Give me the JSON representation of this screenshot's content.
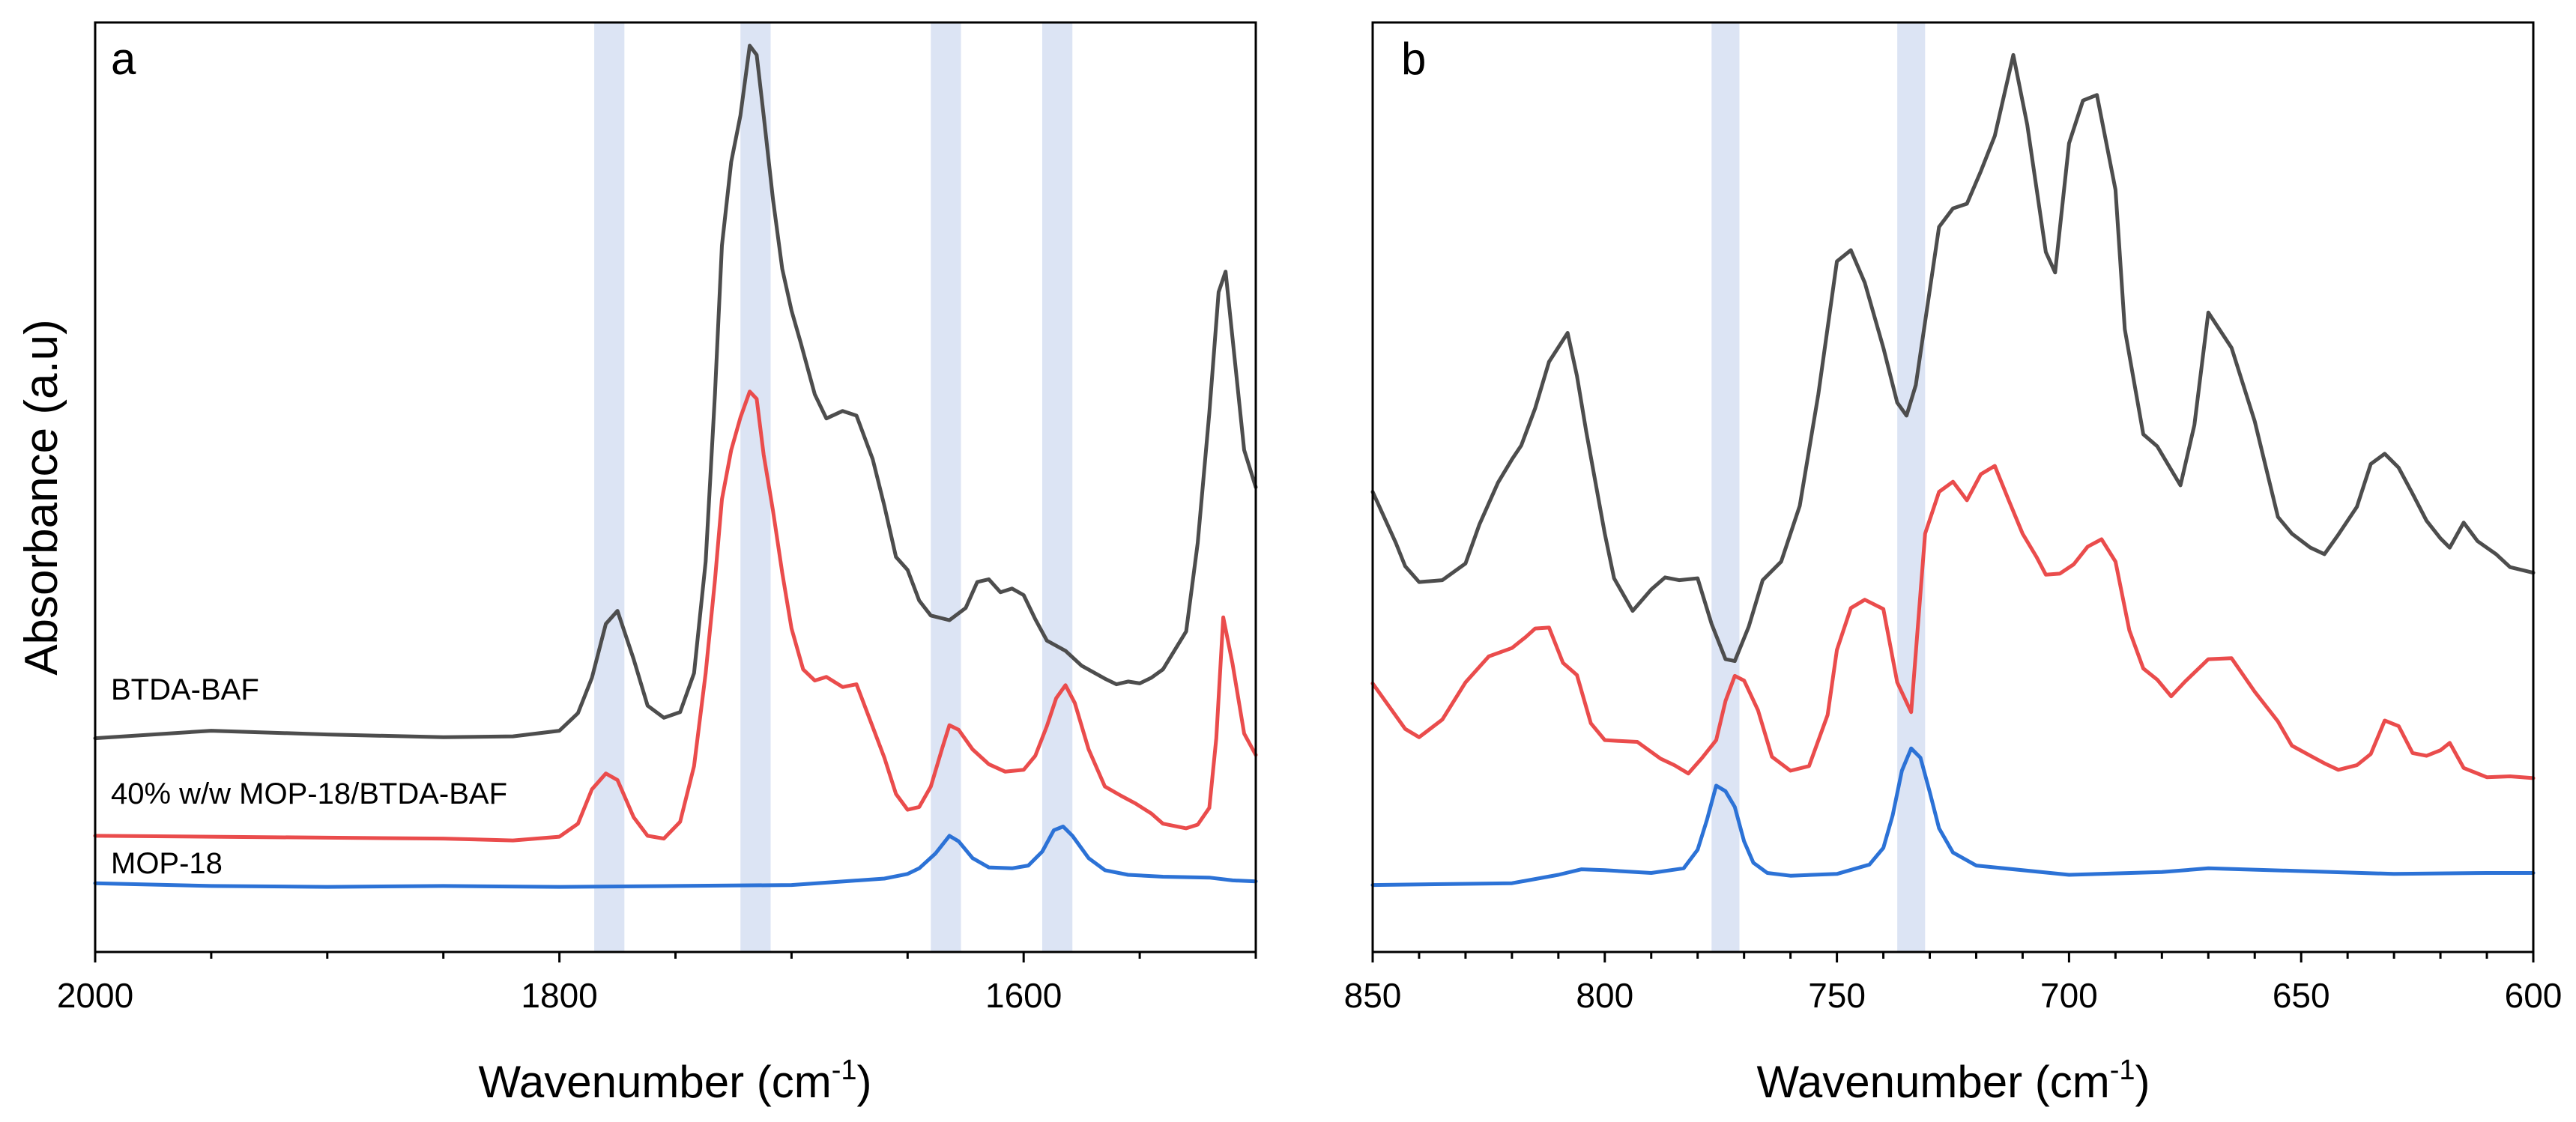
{
  "figure": {
    "ylabel": "Absorbance (a.u)"
  },
  "chart_data": [
    {
      "type": "line",
      "panel_label": "a",
      "xlabel": "Wavenumber (cm",
      "xlabel_sup": "-1",
      "xlabel_end": ")",
      "ylabel": "Absorbance (a.u)",
      "xlim": [
        2000,
        1500
      ],
      "ylim": [
        0,
        100
      ],
      "xticks": [
        2000,
        1800,
        1600
      ],
      "xtick_labels": [
        "2000",
        "1800",
        "1600"
      ],
      "minor_tick_step": 50,
      "grid": false,
      "highlight_bands": [
        [
          1785,
          1772
        ],
        [
          1722,
          1709
        ],
        [
          1640,
          1627
        ],
        [
          1592,
          1579
        ]
      ],
      "series": [
        {
          "name": "BTDA-BAF",
          "color": "#4d4d4d",
          "x": [
            2000,
            1950,
            1900,
            1850,
            1820,
            1800,
            1792,
            1786,
            1780,
            1775,
            1768,
            1762,
            1755,
            1748,
            1742,
            1737,
            1733,
            1730,
            1726,
            1722,
            1718,
            1715,
            1712,
            1708,
            1704,
            1700,
            1696,
            1690,
            1685,
            1678,
            1672,
            1665,
            1660,
            1655,
            1650,
            1645,
            1640,
            1632,
            1625,
            1620,
            1615,
            1610,
            1605,
            1600,
            1595,
            1590,
            1582,
            1575,
            1565,
            1560,
            1555,
            1550,
            1545,
            1540,
            1530,
            1525,
            1520,
            1516,
            1513,
            1510,
            1505,
            1500
          ],
          "y": [
            23,
            23.8,
            23.4,
            23.1,
            23.2,
            23.8,
            25.7,
            29.5,
            35.3,
            36.7,
            31.5,
            26.5,
            25.2,
            25.8,
            30,
            42,
            60,
            76,
            85,
            90,
            97.5,
            96.5,
            90,
            81,
            73.5,
            69,
            65.5,
            60,
            57.4,
            58.2,
            57.7,
            53,
            48,
            42.5,
            41.1,
            37.8,
            36.2,
            35.7,
            37,
            39.8,
            40.1,
            38.7,
            39.1,
            38.4,
            35.8,
            33.5,
            32.4,
            30.8,
            29.4,
            28.8,
            29.1,
            28.9,
            29.5,
            30.4,
            34.5,
            44,
            58,
            71,
            73.2,
            66,
            54,
            50
          ]
        },
        {
          "name": "40% w/w MOP-18/BTDA-BAF",
          "color": "#ea4c4c",
          "x": [
            2000,
            1950,
            1900,
            1850,
            1820,
            1800,
            1792,
            1786,
            1780,
            1775,
            1768,
            1762,
            1755,
            1748,
            1742,
            1737,
            1733,
            1730,
            1726,
            1722,
            1718,
            1715,
            1712,
            1708,
            1704,
            1700,
            1695,
            1690,
            1685,
            1678,
            1672,
            1665,
            1660,
            1655,
            1650,
            1645,
            1640,
            1635,
            1632,
            1628,
            1622,
            1615,
            1608,
            1600,
            1595,
            1590,
            1586,
            1582,
            1578,
            1572,
            1565,
            1558,
            1552,
            1545,
            1540,
            1530,
            1525,
            1520,
            1517,
            1514,
            1510,
            1505,
            1500
          ],
          "y": [
            12.5,
            12.4,
            12.3,
            12.2,
            12,
            12.4,
            13.8,
            17.5,
            19.2,
            18.5,
            14.5,
            12.5,
            12.2,
            14,
            20,
            30,
            40,
            48.7,
            54,
            57.5,
            60.3,
            59.5,
            53.5,
            47.5,
            40.8,
            34.8,
            30.4,
            29.2,
            29.6,
            28.5,
            28.8,
            24.2,
            20.9,
            17,
            15.3,
            15.6,
            17.8,
            22,
            24.4,
            23.9,
            21.8,
            20.2,
            19.4,
            19.6,
            21.1,
            24.3,
            27.3,
            28.7,
            26.8,
            21.8,
            17.8,
            16.8,
            16,
            14.9,
            13.8,
            13.3,
            13.7,
            15.5,
            23,
            36,
            31,
            23.5,
            21.2
          ]
        },
        {
          "name": "MOP-18",
          "color": "#2c72d6",
          "x": [
            2000,
            1950,
            1900,
            1850,
            1800,
            1750,
            1700,
            1660,
            1650,
            1645,
            1638,
            1632,
            1628,
            1622,
            1615,
            1605,
            1598,
            1592,
            1587,
            1583,
            1579,
            1572,
            1565,
            1555,
            1540,
            1520,
            1510,
            1500
          ],
          "y": [
            7.4,
            7.1,
            7,
            7.1,
            7,
            7.1,
            7.2,
            7.9,
            8.4,
            9,
            10.6,
            12.5,
            11.9,
            10.1,
            9.1,
            9,
            9.3,
            10.8,
            13.1,
            13.5,
            12.5,
            10.1,
            8.8,
            8.3,
            8.1,
            8,
            7.7,
            7.6
          ]
        }
      ],
      "series_labels_text": [
        "BTDA-BAF",
        "40% w/w MOP-18/BTDA-BAF",
        "MOP-18"
      ]
    },
    {
      "type": "line",
      "panel_label": "b",
      "xlabel": "Wavenumber (cm",
      "xlabel_sup": "-1",
      "xlabel_end": ")",
      "xlim": [
        850,
        600
      ],
      "ylim": [
        0,
        100
      ],
      "xticks": [
        850,
        800,
        750,
        700,
        650,
        600
      ],
      "xtick_labels": [
        "850",
        "800",
        "750",
        "700",
        "650",
        "600"
      ],
      "minor_tick_step": 10,
      "grid": false,
      "highlight_bands": [
        [
          777,
          771
        ],
        [
          737,
          731
        ]
      ],
      "series": [
        {
          "name": "BTDA-BAF",
          "color": "#4d4d4d",
          "x": [
            850,
            845,
            843,
            840,
            835,
            830,
            827,
            823,
            820,
            818,
            815,
            812,
            808,
            806,
            804,
            800,
            798,
            794,
            790,
            787,
            784,
            780,
            777,
            774,
            772,
            769,
            766,
            762,
            758,
            754,
            750,
            747,
            744,
            740,
            737,
            735,
            733,
            728,
            725,
            722,
            719,
            716,
            712,
            709,
            705,
            703,
            700,
            697,
            694,
            690,
            688,
            684,
            681,
            676,
            673,
            670,
            665,
            660,
            655,
            652,
            648,
            645,
            642,
            638,
            635,
            632,
            629,
            626,
            623,
            620,
            618,
            615,
            612,
            608,
            605,
            600
          ],
          "y": [
            49.5,
            44,
            41.5,
            39.8,
            40,
            41.8,
            46,
            50.5,
            53,
            54.5,
            58.5,
            63.5,
            66.6,
            62,
            56,
            45,
            40.2,
            36.7,
            39,
            40.3,
            40,
            40.2,
            35.3,
            31.5,
            31.3,
            35,
            40,
            42,
            48,
            60,
            74.3,
            75.5,
            72,
            65,
            59.1,
            57.7,
            61,
            78,
            80,
            80.5,
            84,
            87.8,
            96.5,
            89,
            75.3,
            73.1,
            87,
            91.6,
            92.2,
            82,
            67,
            55.7,
            54.4,
            50.2,
            56.7,
            68.8,
            65,
            57.1,
            46.8,
            45,
            43.5,
            42.8,
            44.9,
            47.9,
            52.5,
            53.6,
            52.1,
            49.3,
            46.4,
            44.5,
            43.5,
            46.2,
            44.2,
            42.8,
            41.4,
            40.8
          ]
        },
        {
          "name": "40% w/w MOP-18/BTDA-BAF",
          "color": "#ea4c4c",
          "x": [
            850,
            845,
            843,
            840,
            835,
            830,
            825,
            820,
            817,
            815,
            812,
            809,
            806,
            803,
            800,
            797,
            793,
            788,
            785,
            782,
            779,
            776,
            774,
            772,
            770,
            767,
            764,
            760,
            756,
            752,
            750,
            747,
            744,
            740,
            737,
            734,
            731,
            728,
            725,
            722,
            719,
            716,
            713,
            710,
            707,
            705,
            702,
            699,
            696,
            693,
            690,
            687,
            684,
            681,
            678,
            675,
            670,
            665,
            660,
            655,
            652,
            648,
            645,
            642,
            638,
            635,
            632,
            629,
            626,
            623,
            620,
            618,
            615,
            610,
            605,
            600
          ],
          "y": [
            28.9,
            25.4,
            24,
            23.1,
            25,
            29,
            31.8,
            32.7,
            33.9,
            34.8,
            34.9,
            31.1,
            29.8,
            24.6,
            22.8,
            22.7,
            22.6,
            20.8,
            20.1,
            19.2,
            20.9,
            22.8,
            27,
            29.7,
            29.2,
            26,
            21,
            19.5,
            20,
            25.5,
            32.5,
            37,
            37.9,
            36.9,
            29,
            25.8,
            45,
            49.5,
            50.6,
            48.6,
            51.4,
            52.3,
            48.6,
            45,
            42.5,
            40.6,
            40.7,
            41.7,
            43.6,
            44.4,
            42,
            34.6,
            30.5,
            29.3,
            27.5,
            29.1,
            31.5,
            31.6,
            28,
            24.8,
            22.2,
            21.1,
            20.3,
            19.6,
            20.1,
            21.3,
            24.9,
            24.3,
            21.4,
            21.1,
            21.7,
            22.5,
            19.8,
            18.8,
            18.9,
            18.7
          ]
        },
        {
          "name": "MOP-18",
          "color": "#2c72d6",
          "x": [
            850,
            820,
            810,
            805,
            800,
            790,
            783,
            780,
            778,
            776,
            774,
            772,
            770,
            768,
            765,
            760,
            750,
            743,
            740,
            738,
            736,
            734,
            732,
            730,
            728,
            725,
            720,
            700,
            680,
            670,
            650,
            630,
            610,
            600
          ],
          "y": [
            7.2,
            7.4,
            8.3,
            8.9,
            8.8,
            8.5,
            9,
            11,
            14.2,
            17.9,
            17.3,
            15.6,
            11.9,
            9.6,
            8.5,
            8.2,
            8.4,
            9.4,
            11.2,
            14.7,
            19.5,
            21.9,
            20.9,
            17.2,
            13.3,
            10.7,
            9.3,
            8.3,
            8.6,
            9,
            8.7,
            8.4,
            8.5,
            8.5
          ]
        }
      ]
    }
  ]
}
